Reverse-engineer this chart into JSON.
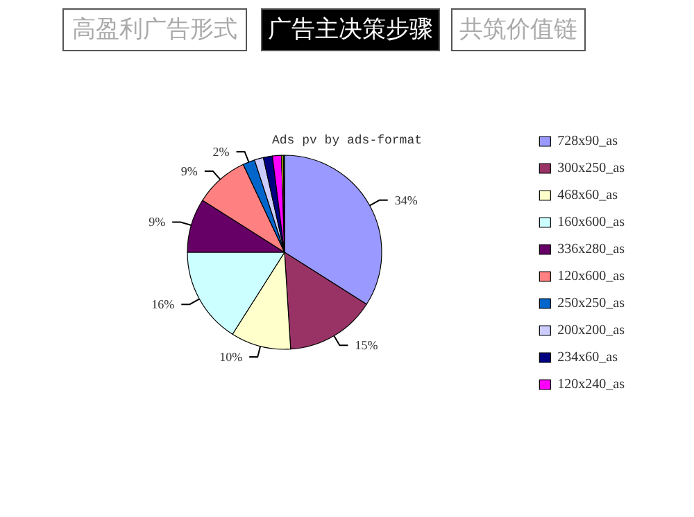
{
  "chart_data": {
    "type": "pie",
    "title": "Ads pv by ads-format",
    "annotations": [
      "高盈利广告形式",
      "广告主决策步骤",
      "共筑价值链"
    ],
    "categories": [
      "728x90_as",
      "300x250_as",
      "468x60_as",
      "160x600_as",
      "336x280_as",
      "120x600_as",
      "250x250_as",
      "200x200_as",
      "234x60_as",
      "120x240_as",
      null,
      null
    ],
    "values": [
      34,
      15,
      10,
      16,
      9,
      9,
      2,
      1.5,
      1.5,
      1.5,
      0.3,
      0.2
    ],
    "colors": [
      "#9999ff",
      "#993366",
      "#ffffcc",
      "#ccffff",
      "#660066",
      "#ff8080",
      "#0066cc",
      "#ccccff",
      "#000080",
      "#ff00ff",
      "#ffff00",
      "#008080"
    ],
    "value_labels": [
      "34%",
      "15%",
      "10%",
      "16%",
      "9%",
      "9%",
      "2%",
      null,
      null,
      null,
      null,
      null
    ],
    "legend": "right"
  }
}
